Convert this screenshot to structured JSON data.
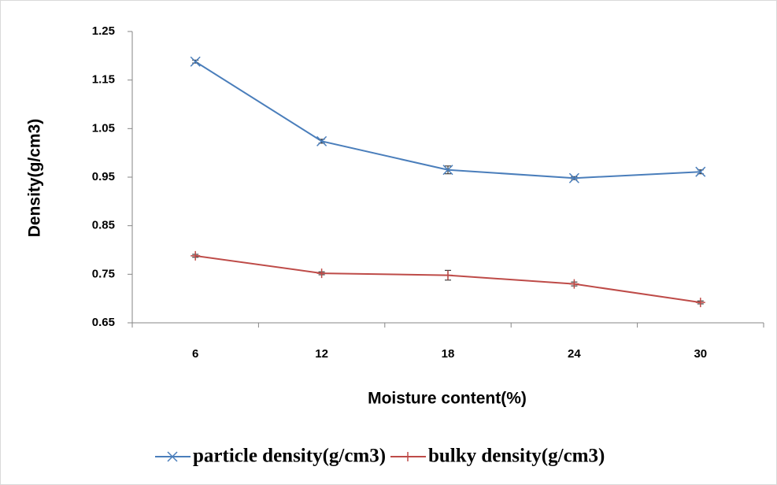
{
  "chart_data": {
    "type": "line",
    "x_label": "Moisture content(%)",
    "y_label": "Density(g/cm3)",
    "categories": [
      "6",
      "12",
      "18",
      "24",
      "30"
    ],
    "series": [
      {
        "name": "particle density(g/cm3)",
        "color": "#4a7ebb",
        "marker": "x",
        "values": [
          1.188,
          1.024,
          0.965,
          0.948,
          0.961
        ],
        "errors": [
          0.003,
          0.004,
          0.008,
          0.003,
          0.004
        ]
      },
      {
        "name": "bulky density(g/cm3)",
        "color": "#be4b48",
        "marker": "+",
        "values": [
          0.788,
          0.752,
          0.748,
          0.73,
          0.692
        ],
        "errors": [
          0.003,
          0.003,
          0.01,
          0.004,
          0.003
        ]
      }
    ],
    "ylim": [
      0.65,
      1.25
    ],
    "yticks": [
      0.65,
      0.75,
      0.85,
      0.95,
      1.05,
      1.15,
      1.25
    ],
    "grid": false,
    "legend": "bottom"
  }
}
